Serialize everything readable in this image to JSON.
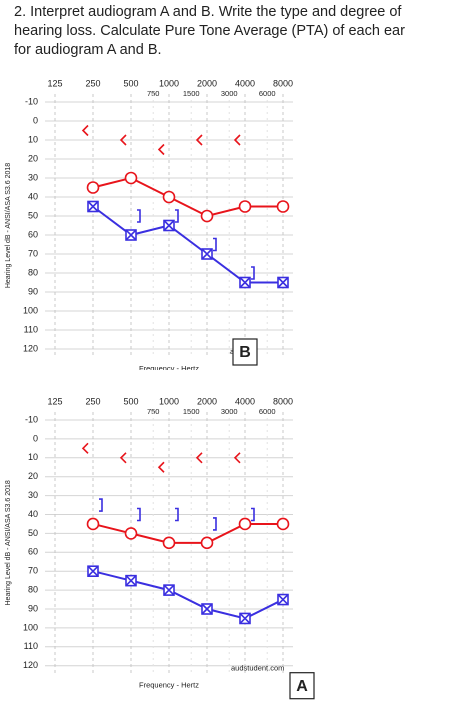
{
  "question": [
    "2. Interpret audiogram A and B. Write the type and degree of",
    "hearing loss. Calculate Pure Tone Average (PTA) of each ear",
    "for audiogram A and B."
  ],
  "chart_data": [
    {
      "type": "line",
      "label": "B",
      "watermark": "audstud",
      "x_label": "Frequency - Hertz",
      "y_label": "Hearing Level dB - ANSI/ASA S3.6 2018",
      "log_x": true,
      "inverted_y": true,
      "grid": true,
      "xlim": [
        125,
        8000
      ],
      "xticks": [
        125,
        250,
        500,
        1000,
        2000,
        4000,
        8000
      ],
      "xticks_minor": [
        750,
        1500,
        3000,
        6000
      ],
      "ylim": [
        -10,
        120
      ],
      "yticks": [
        -10,
        0,
        10,
        20,
        30,
        40,
        50,
        60,
        70,
        80,
        90,
        100,
        110,
        120
      ],
      "x": [
        250,
        500,
        1000,
        2000,
        4000,
        8000
      ],
      "series": [
        {
          "color": "#e8141b",
          "marker": "circle",
          "line": true,
          "values": [
            35,
            30,
            40,
            50,
            45,
            45
          ]
        },
        {
          "color": "#3a2fe0",
          "marker": "boxx",
          "line": true,
          "values": [
            45,
            60,
            55,
            70,
            85,
            85
          ]
        },
        {
          "color": "#e8141b",
          "marker": "lt",
          "line": false,
          "values": [
            5,
            10,
            15,
            10,
            10,
            null
          ]
        },
        {
          "color": "#3a2fe0",
          "marker": "rbracket",
          "line": false,
          "values": [
            null,
            50,
            50,
            65,
            80,
            null
          ]
        }
      ]
    },
    {
      "type": "line",
      "label": "A",
      "watermark": "audstudent.com",
      "x_label": "Frequency - Hertz",
      "y_label": "Hearing Level dB - ANSI/ASA S3.6 2018",
      "log_x": true,
      "inverted_y": true,
      "grid": true,
      "xlim": [
        125,
        8000
      ],
      "xticks": [
        125,
        250,
        500,
        1000,
        2000,
        4000,
        8000
      ],
      "xticks_minor": [
        750,
        1500,
        3000,
        6000
      ],
      "ylim": [
        -10,
        120
      ],
      "yticks": [
        -10,
        0,
        10,
        20,
        30,
        40,
        50,
        60,
        70,
        80,
        90,
        100,
        110,
        120
      ],
      "x": [
        250,
        500,
        1000,
        2000,
        4000,
        8000
      ],
      "series": [
        {
          "color": "#e8141b",
          "marker": "circle",
          "line": true,
          "values": [
            45,
            50,
            55,
            55,
            45,
            45
          ]
        },
        {
          "color": "#3a2fe0",
          "marker": "boxx",
          "line": true,
          "values": [
            70,
            75,
            80,
            90,
            95,
            85
          ]
        },
        {
          "color": "#e8141b",
          "marker": "lt",
          "line": false,
          "values": [
            5,
            10,
            15,
            10,
            10,
            null
          ]
        },
        {
          "color": "#3a2fe0",
          "marker": "rbracket",
          "line": false,
          "values": [
            35,
            40,
            40,
            45,
            40,
            null
          ]
        }
      ]
    }
  ]
}
